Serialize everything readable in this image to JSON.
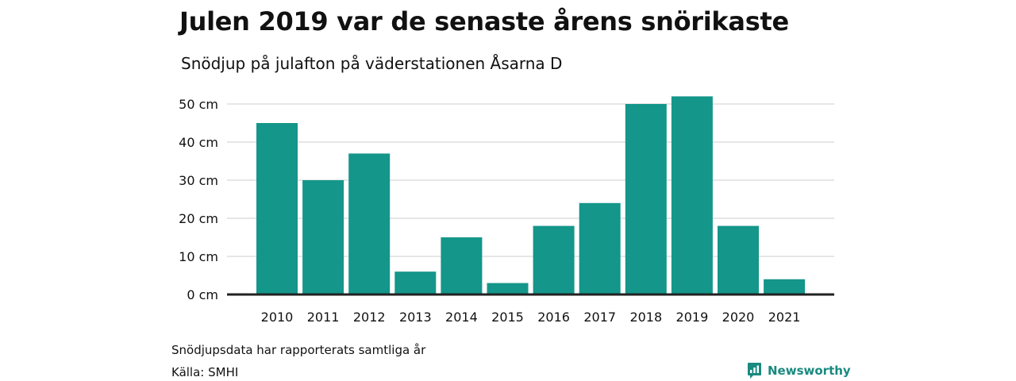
{
  "title": "Julen 2019 var de senaste årens snörikaste",
  "subtitle": "Snödjup på julafton på väderstationen Åsarna D",
  "footer": {
    "note": "Snödjupsdata har rapporterats samtliga år",
    "source": "Källa: SMHI",
    "brand": "Newsworthy",
    "brand_icon": "bar-chart-speech-icon"
  },
  "colors": {
    "bar": "#14968a",
    "grid": "#dddddd",
    "baseline": "#222222",
    "brand": "#1a8a80"
  },
  "chart_data": {
    "type": "bar",
    "title": "Julen 2019 var de senaste årens snörikaste",
    "subtitle": "Snödjup på julafton på väderstationen Åsarna D",
    "categories": [
      "2010",
      "2011",
      "2012",
      "2013",
      "2014",
      "2015",
      "2016",
      "2017",
      "2018",
      "2019",
      "2020",
      "2021"
    ],
    "values": [
      45,
      30,
      37,
      6,
      15,
      3,
      18,
      24,
      50,
      52,
      18,
      4
    ],
    "unit": "cm",
    "yticks": [
      0,
      10,
      20,
      30,
      40,
      50
    ],
    "ytick_labels": [
      "0 cm",
      "10 cm",
      "20 cm",
      "30 cm",
      "40 cm",
      "50 cm"
    ],
    "ylim": [
      0,
      50
    ],
    "grid": true,
    "legend": "none"
  }
}
